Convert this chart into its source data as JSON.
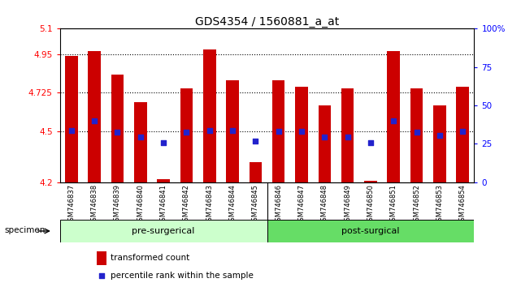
{
  "title": "GDS4354 / 1560881_a_at",
  "samples": [
    "GSM746837",
    "GSM746838",
    "GSM746839",
    "GSM746840",
    "GSM746841",
    "GSM746842",
    "GSM746843",
    "GSM746844",
    "GSM746845",
    "GSM746846",
    "GSM746847",
    "GSM746848",
    "GSM746849",
    "GSM746850",
    "GSM746851",
    "GSM746852",
    "GSM746853",
    "GSM746854"
  ],
  "bar_values": [
    4.94,
    4.97,
    4.83,
    4.67,
    4.22,
    4.75,
    4.98,
    4.8,
    4.32,
    4.8,
    4.76,
    4.65,
    4.75,
    4.21,
    4.97,
    4.75,
    4.65,
    4.76
  ],
  "dot_values": [
    4.505,
    4.56,
    4.495,
    4.465,
    4.43,
    4.495,
    4.505,
    4.505,
    4.44,
    4.5,
    4.5,
    4.465,
    4.465,
    4.43,
    4.56,
    4.495,
    4.475,
    4.5
  ],
  "bar_color": "#cc0000",
  "dot_color": "#2222cc",
  "ymin": 4.2,
  "ymax": 5.1,
  "yticks": [
    4.2,
    4.5,
    4.725,
    4.95,
    5.1
  ],
  "ytick_labels": [
    "4.2",
    "4.5",
    "4.725",
    "4.95",
    "5.1"
  ],
  "right_yticks_pct": [
    0,
    25,
    50,
    75,
    100
  ],
  "right_ytick_labels": [
    "0",
    "25",
    "50",
    "75",
    "100%"
  ],
  "grid_values": [
    4.95,
    4.725,
    4.5
  ],
  "pre_surgical_count": 9,
  "post_surgical_count": 9,
  "pre_label": "pre-surgerical",
  "post_label": "post-surgical",
  "specimen_label": "specimen",
  "legend_bar_label": "transformed count",
  "legend_dot_label": "percentile rank within the sample",
  "pre_color": "#ccffcc",
  "post_color": "#66dd66",
  "bg_color": "#ffffff",
  "bar_width": 0.55,
  "title_fontsize": 10
}
